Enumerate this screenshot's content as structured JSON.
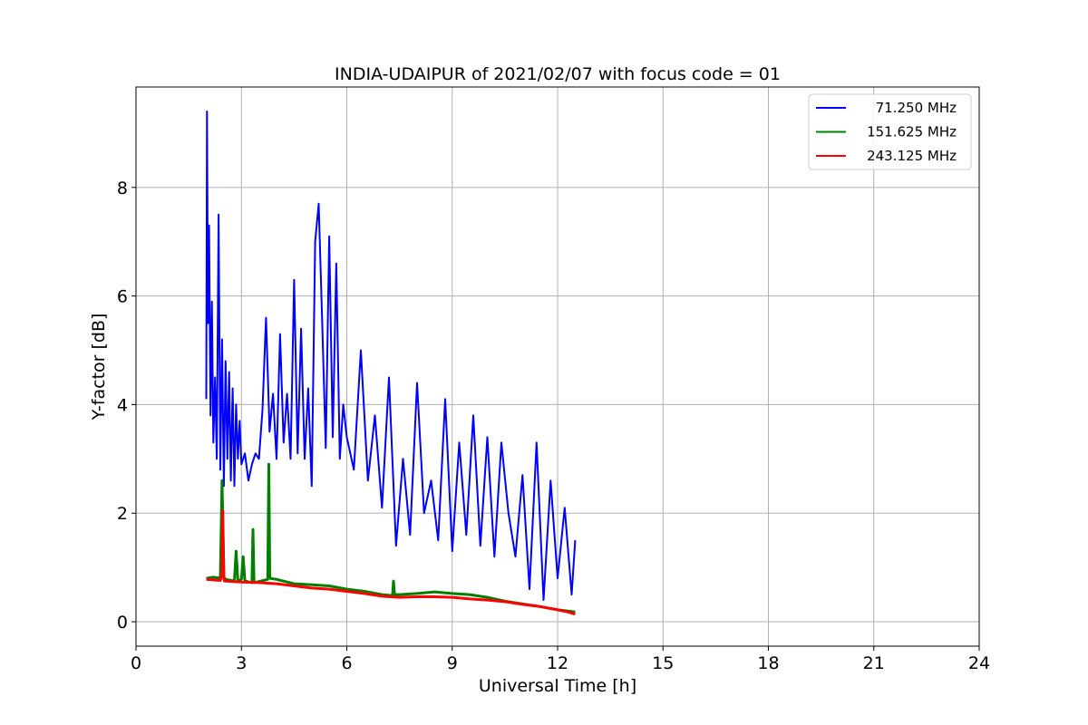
{
  "chart_data": {
    "type": "line",
    "title": "INDIA-UDAIPUR of 2021/02/07 with focus code = 01",
    "xlabel": "Universal Time [h]",
    "ylabel": "Y-factor [dB]",
    "xlim": [
      0,
      24
    ],
    "ylim": [
      -0.45,
      9.85
    ],
    "xticks": [
      0,
      3,
      6,
      9,
      12,
      15,
      18,
      21,
      24
    ],
    "yticks": [
      0,
      2,
      4,
      6,
      8
    ],
    "grid": true,
    "legend_position": "top-right",
    "series": [
      {
        "name": "71.250 MHz",
        "color": "#0000ff",
        "x": [
          2.0,
          2.02,
          2.05,
          2.08,
          2.12,
          2.16,
          2.2,
          2.25,
          2.3,
          2.35,
          2.4,
          2.45,
          2.5,
          2.55,
          2.6,
          2.65,
          2.7,
          2.75,
          2.8,
          2.85,
          2.9,
          2.95,
          3.0,
          3.1,
          3.2,
          3.3,
          3.4,
          3.5,
          3.6,
          3.7,
          3.75,
          3.8,
          3.9,
          4.0,
          4.1,
          4.2,
          4.3,
          4.4,
          4.5,
          4.6,
          4.7,
          4.8,
          4.9,
          5.0,
          5.1,
          5.2,
          5.3,
          5.4,
          5.5,
          5.6,
          5.7,
          5.8,
          5.9,
          6.0,
          6.2,
          6.4,
          6.6,
          6.8,
          7.0,
          7.2,
          7.4,
          7.6,
          7.8,
          8.0,
          8.2,
          8.4,
          8.6,
          8.8,
          9.0,
          9.2,
          9.4,
          9.6,
          9.8,
          10.0,
          10.2,
          10.4,
          10.6,
          10.8,
          11.0,
          11.2,
          11.4,
          11.6,
          11.8,
          12.0,
          12.2,
          12.4,
          12.5
        ],
        "y": [
          4.1,
          9.4,
          5.5,
          7.3,
          3.8,
          5.9,
          3.3,
          4.5,
          3.0,
          7.5,
          2.8,
          5.2,
          2.5,
          4.8,
          3.0,
          4.6,
          2.6,
          4.3,
          2.5,
          4.0,
          3.0,
          3.7,
          2.9,
          3.1,
          2.6,
          2.9,
          3.1,
          3.0,
          3.9,
          5.6,
          4.6,
          3.5,
          4.2,
          3.0,
          5.3,
          3.3,
          4.2,
          3.0,
          6.3,
          3.1,
          5.4,
          3.0,
          4.3,
          2.5,
          7.0,
          7.7,
          5.5,
          3.2,
          7.1,
          3.4,
          6.6,
          3.0,
          4.0,
          3.4,
          2.8,
          5.0,
          2.6,
          3.8,
          2.1,
          4.5,
          1.4,
          3.0,
          1.6,
          4.4,
          2.0,
          2.6,
          1.5,
          4.1,
          1.3,
          3.3,
          1.6,
          3.8,
          1.4,
          3.4,
          1.2,
          3.3,
          2.0,
          1.2,
          2.7,
          0.6,
          3.3,
          0.4,
          2.6,
          0.8,
          2.1,
          0.5,
          1.5
        ]
      },
      {
        "name": "151.625 MHz",
        "color": "#008000",
        "x": [
          2.0,
          2.2,
          2.4,
          2.45,
          2.5,
          2.55,
          2.8,
          2.85,
          2.9,
          3.0,
          3.05,
          3.1,
          3.3,
          3.33,
          3.36,
          3.5,
          3.75,
          3.78,
          3.81,
          4.0,
          4.5,
          5.0,
          5.5,
          6.0,
          6.5,
          7.0,
          7.3,
          7.33,
          7.36,
          7.5,
          8.0,
          8.5,
          9.0,
          9.5,
          10.0,
          10.5,
          11.0,
          11.5,
          12.0,
          12.5
        ],
        "y": [
          0.8,
          0.82,
          0.8,
          2.6,
          0.82,
          0.78,
          0.75,
          1.3,
          0.75,
          0.78,
          1.2,
          0.75,
          0.72,
          1.7,
          0.72,
          0.74,
          0.78,
          2.9,
          0.8,
          0.78,
          0.7,
          0.68,
          0.66,
          0.6,
          0.56,
          0.5,
          0.48,
          0.75,
          0.5,
          0.5,
          0.52,
          0.55,
          0.52,
          0.5,
          0.45,
          0.38,
          0.33,
          0.28,
          0.22,
          0.18
        ]
      },
      {
        "name": "243.125 MHz",
        "color": "#ff0000",
        "x": [
          2.0,
          2.2,
          2.4,
          2.45,
          2.47,
          2.5,
          2.52,
          2.8,
          3.0,
          3.5,
          4.0,
          4.5,
          5.0,
          5.5,
          6.0,
          6.5,
          7.0,
          7.5,
          8.0,
          8.5,
          9.0,
          9.5,
          10.0,
          10.5,
          11.0,
          11.5,
          12.0,
          12.3,
          12.5
        ],
        "y": [
          0.78,
          0.77,
          0.76,
          0.9,
          2.05,
          0.8,
          0.75,
          0.74,
          0.73,
          0.72,
          0.7,
          0.66,
          0.62,
          0.6,
          0.56,
          0.52,
          0.47,
          0.45,
          0.46,
          0.46,
          0.45,
          0.42,
          0.4,
          0.37,
          0.32,
          0.28,
          0.22,
          0.18,
          0.14
        ]
      }
    ]
  }
}
